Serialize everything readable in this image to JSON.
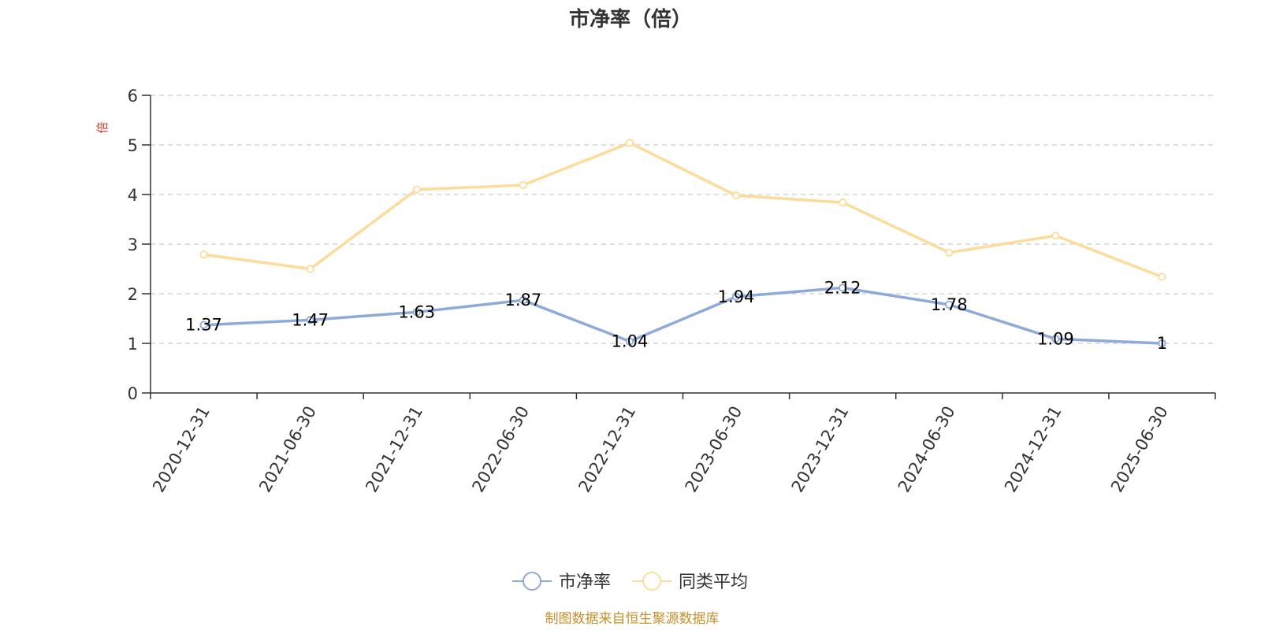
{
  "chart_data": {
    "type": "line",
    "title": "市净率（倍）",
    "ylabel": "倍",
    "xlabel": "",
    "categories": [
      "2020-12-31",
      "2021-06-30",
      "2021-12-31",
      "2022-06-30",
      "2022-12-31",
      "2023-06-30",
      "2023-12-31",
      "2024-06-30",
      "2024-12-31",
      "2025-06-30"
    ],
    "series": [
      {
        "name": "市净率",
        "color": "#8eaad8",
        "values": [
          1.37,
          1.47,
          1.63,
          1.87,
          1.04,
          1.94,
          2.12,
          1.78,
          1.09,
          1
        ],
        "data_labels": [
          "1.37",
          "1.47",
          "1.63",
          "1.87",
          "1.04",
          "1.94",
          "2.12",
          "1.78",
          "1.09",
          "1"
        ]
      },
      {
        "name": "同类平均",
        "color": "#fcdc9a",
        "values": [
          2.79,
          2.5,
          4.1,
          4.19,
          5.04,
          3.98,
          3.84,
          2.83,
          3.17,
          2.34
        ]
      }
    ],
    "ylim": [
      0,
      6
    ],
    "yticks": [
      "0",
      "1",
      "2",
      "3",
      "4",
      "5",
      "6"
    ],
    "grid": true,
    "legend_position": "bottom-center"
  },
  "colors": {
    "unit_label": "#e8302d",
    "source_text": "#c8902b",
    "axis": "#333333",
    "grid": "#cccccc"
  },
  "source": "制图数据来自恒生聚源数据库"
}
